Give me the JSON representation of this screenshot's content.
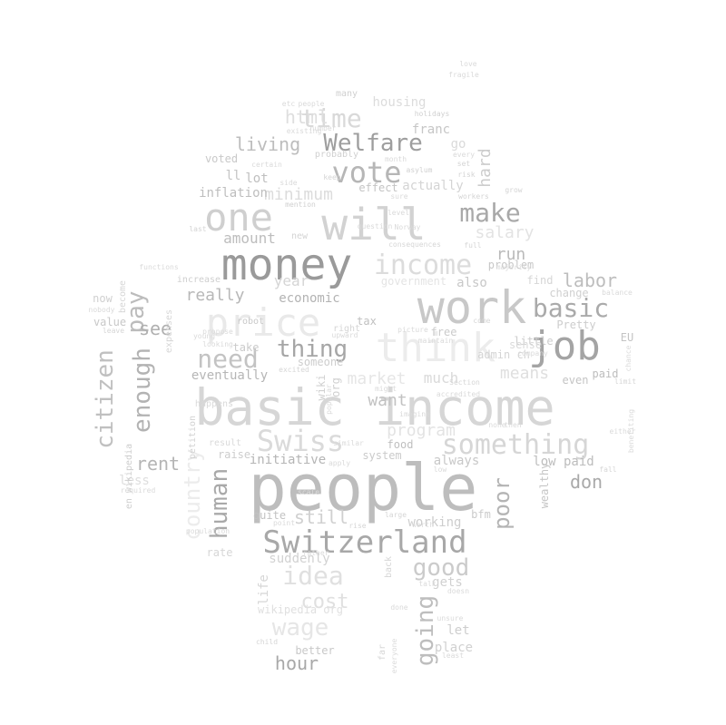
{
  "words": [
    {
      "text": "people",
      "tone": "#bdbdbd"
    },
    {
      "text": "basic income",
      "tone": "#d6d6d6"
    },
    {
      "text": "money",
      "tone": "#9a9a9a"
    },
    {
      "text": "will",
      "tone": "#d2d2d2"
    },
    {
      "text": "work",
      "tone": "#c8c8c8"
    },
    {
      "text": "think",
      "tone": "#ececec"
    },
    {
      "text": "price",
      "tone": "#e9e9e9"
    },
    {
      "text": "job",
      "tone": "#a4a4a4"
    },
    {
      "text": "one",
      "tone": "#cfcfcf"
    },
    {
      "text": "Switzerland",
      "tone": "#a8a8a8"
    },
    {
      "text": "Swiss",
      "tone": "#dadada"
    },
    {
      "text": "something",
      "tone": "#d6d6d6"
    },
    {
      "text": "income",
      "tone": "#dcdcdc"
    },
    {
      "text": "vote",
      "tone": "#b6b6b6"
    },
    {
      "text": "Welfare",
      "tone": "#9e9e9e"
    },
    {
      "text": "time",
      "tone": "#d9d9d9"
    },
    {
      "text": "html",
      "tone": "#dedede"
    },
    {
      "text": "make",
      "tone": "#a9a9a9"
    },
    {
      "text": "basic",
      "tone": "#aaaaaa"
    },
    {
      "text": "need",
      "tone": "#c3c3c3"
    },
    {
      "text": "thing",
      "tone": "#a6a6a6"
    },
    {
      "text": "good",
      "tone": "#cbcbcb"
    },
    {
      "text": "citizen",
      "tone": "#c0c0c0"
    },
    {
      "text": "enough",
      "tone": "#b3b3b3"
    },
    {
      "text": "pay",
      "tone": "#bcbcbc"
    },
    {
      "text": "human",
      "tone": "#a9a9a9"
    },
    {
      "text": "going",
      "tone": "#bebebe"
    },
    {
      "text": "poor",
      "tone": "#b4b4b4"
    },
    {
      "text": "idea",
      "tone": "#e0e0e0"
    },
    {
      "text": "wage",
      "tone": "#e6e6e6"
    },
    {
      "text": "country",
      "tone": "#ececec"
    },
    {
      "text": "labor",
      "tone": "#bdbdbd"
    },
    {
      "text": "living",
      "tone": "#bdbdbd"
    },
    {
      "text": "minimum",
      "tone": "#dcdcdc"
    },
    {
      "text": "market",
      "tone": "#e6e6e6"
    },
    {
      "text": "program",
      "tone": "#e3e3e3"
    },
    {
      "text": "hour",
      "tone": "#a8a8a8"
    },
    {
      "text": "cost",
      "tone": "#e0e0e0"
    },
    {
      "text": "rent",
      "tone": "#b5b5b5"
    },
    {
      "text": "still",
      "tone": "#d0d0d0"
    },
    {
      "text": "see",
      "tone": "#b0b0b0"
    },
    {
      "text": "really",
      "tone": "#b8b8b8"
    },
    {
      "text": "don",
      "tone": "#a9a9a9"
    },
    {
      "text": "run",
      "tone": "#bababa"
    },
    {
      "text": "salary",
      "tone": "#e3e3e3"
    },
    {
      "text": "hard",
      "tone": "#cdcdcd"
    },
    {
      "text": "amount",
      "tone": "#bdbdbd"
    },
    {
      "text": "year",
      "tone": "#d5d5d5"
    },
    {
      "text": "means",
      "tone": "#dfdfdf"
    },
    {
      "text": "want",
      "tone": "#c2c2c2"
    },
    {
      "text": "economic",
      "tone": "#b3b3b3"
    },
    {
      "text": "initiative",
      "tone": "#b5b5b5"
    },
    {
      "text": "inflation",
      "tone": "#bebebe"
    },
    {
      "text": "eventually",
      "tone": "#b6b6b6"
    },
    {
      "text": "low paid",
      "tone": "#bdbdbd"
    },
    {
      "text": "franc",
      "tone": "#c6c6c6"
    },
    {
      "text": "lot",
      "tone": "#bfbfbf"
    },
    {
      "text": "ll",
      "tone": "#c5c5c5"
    },
    {
      "text": "voted",
      "tone": "#c9c9c9"
    },
    {
      "text": "wealthy",
      "tone": "#c6c6c6"
    },
    {
      "text": "paid",
      "tone": "#bdbdbd"
    },
    {
      "text": "even",
      "tone": "#c4c4c4"
    },
    {
      "text": "also",
      "tone": "#c8c8c8"
    },
    {
      "text": "problem",
      "tone": "#c8c8c8"
    },
    {
      "text": "change",
      "tone": "#d0d0d0"
    },
    {
      "text": "little",
      "tone": "#cdcdcd"
    },
    {
      "text": "much",
      "tone": "#dadada"
    },
    {
      "text": "tax",
      "tone": "#c0c0c0"
    },
    {
      "text": "free",
      "tone": "#cbcbcb"
    },
    {
      "text": "food",
      "tone": "#bfbfbf"
    },
    {
      "text": "system",
      "tone": "#cbcbcb"
    },
    {
      "text": "always",
      "tone": "#c8c8c8"
    },
    {
      "text": "working",
      "tone": "#cdcdcd"
    },
    {
      "text": "better",
      "tone": "#c8c8c8"
    },
    {
      "text": "let",
      "tone": "#cecece"
    },
    {
      "text": "place",
      "tone": "#d1d1d1"
    },
    {
      "text": "gets",
      "tone": "#d1d1d1"
    },
    {
      "text": "quite",
      "tone": "#c3c3c3"
    },
    {
      "text": "suddenly",
      "tone": "#d2d2d2"
    },
    {
      "text": "rate",
      "tone": "#d6d6d6"
    },
    {
      "text": "less",
      "tone": "#dedede"
    },
    {
      "text": "raise",
      "tone": "#cdcdcd"
    },
    {
      "text": "value",
      "tone": "#c8c8c8"
    },
    {
      "text": "now",
      "tone": "#d0d0d0"
    },
    {
      "text": "take",
      "tone": "#cbcbcb"
    },
    {
      "text": "robot",
      "tone": "#c9c9c9"
    },
    {
      "text": "someone",
      "tone": "#cdcdcd"
    },
    {
      "text": "life",
      "tone": "#d6d6d6"
    },
    {
      "text": "wikipedia org",
      "tone": "#e0e0e0"
    },
    {
      "text": "en wikipedia",
      "tone": "#cdcdcd"
    },
    {
      "text": "become",
      "tone": "#d6d6d6"
    },
    {
      "text": "petition",
      "tone": "#d2d2d2"
    },
    {
      "text": "expenses",
      "tone": "#d6d6d6"
    },
    {
      "text": "increase",
      "tone": "#cfcfcf"
    },
    {
      "text": "effect",
      "tone": "#c4c4c4"
    },
    {
      "text": "actually",
      "tone": "#d4d4d4"
    },
    {
      "text": "housing",
      "tone": "#dcdcdc"
    },
    {
      "text": "many",
      "tone": "#d0d0d0"
    },
    {
      "text": "EU",
      "tone": "#c4c4c4"
    },
    {
      "text": "bfm",
      "tone": "#cbcbcb"
    },
    {
      "text": "admin ch",
      "tone": "#d4d4d4"
    },
    {
      "text": "Pretty",
      "tone": "#cdcdcd"
    },
    {
      "text": "find",
      "tone": "#d6d6d6"
    },
    {
      "text": "sense",
      "tone": "#dadada"
    },
    {
      "text": "wiki",
      "tone": "#d0d0d0"
    },
    {
      "text": "org",
      "tone": "#d0d0d0"
    },
    {
      "text": "government",
      "tone": "#e4e4e4"
    },
    {
      "text": "probably",
      "tone": "#d0d0d0"
    },
    {
      "text": "holidays",
      "tone": "#d0d0d0"
    },
    {
      "text": "existing",
      "tone": "#dadada"
    },
    {
      "text": "asylum",
      "tone": "#d0d0d0"
    },
    {
      "text": "workers",
      "tone": "#d4d4d4"
    },
    {
      "text": "grow",
      "tone": "#d4d4d4"
    },
    {
      "text": "keep",
      "tone": "#d4d4d4"
    },
    {
      "text": "mention",
      "tone": "#d0d0d0"
    },
    {
      "text": "risk",
      "tone": "#d4d4d4"
    },
    {
      "text": "set",
      "tone": "#d4d4d4"
    },
    {
      "text": "last",
      "tone": "#d4d4d4"
    },
    {
      "text": "new",
      "tone": "#d4d4d4"
    },
    {
      "text": "consequences",
      "tone": "#d6d6d6"
    },
    {
      "text": "full",
      "tone": "#d6d6d6"
    },
    {
      "text": "leave",
      "tone": "#d6d6d6"
    },
    {
      "text": "limit",
      "tone": "#d6d6d6"
    },
    {
      "text": "Section",
      "tone": "#d6d6d6"
    },
    {
      "text": "excited",
      "tone": "#d6d6d6"
    },
    {
      "text": "right",
      "tone": "#d6d6d6"
    },
    {
      "text": "come",
      "tone": "#d6d6d6"
    },
    {
      "text": "fall",
      "tone": "#d6d6d6"
    },
    {
      "text": "far",
      "tone": "#d6d6d6"
    },
    {
      "text": "back",
      "tone": "#d6d6d6"
    },
    {
      "text": "large",
      "tone": "#d6d6d6"
    },
    {
      "text": "rise",
      "tone": "#d6d6d6"
    },
    {
      "text": "child",
      "tone": "#d6d6d6"
    },
    {
      "text": "happens",
      "tone": "#dadada"
    },
    {
      "text": "result",
      "tone": "#dadada"
    },
    {
      "text": "required",
      "tone": "#dadada"
    },
    {
      "text": "go",
      "tone": "#dadada"
    },
    {
      "text": "every",
      "tone": "#dadada"
    },
    {
      "text": "doesn",
      "tone": "#dadada"
    },
    {
      "text": "point",
      "tone": "#dadada"
    },
    {
      "text": "imagine",
      "tone": "#dadada"
    },
    {
      "text": "maintain",
      "tone": "#dadada"
    },
    {
      "text": "etc",
      "tone": "#dadada"
    },
    {
      "text": "either",
      "tone": "#dadada"
    },
    {
      "text": "balance",
      "tone": "#dadada"
    },
    {
      "text": "chance",
      "tone": "#dadada"
    },
    {
      "text": "benefiting",
      "tone": "#dadada"
    },
    {
      "text": "accredited",
      "tone": "#dadada"
    },
    {
      "text": "upward",
      "tone": "#dadada"
    },
    {
      "text": "similar",
      "tone": "#dadada"
    },
    {
      "text": "everyone",
      "tone": "#dadada"
    },
    {
      "text": "worth",
      "tone": "#dadada"
    },
    {
      "text": "talk",
      "tone": "#dadada"
    },
    {
      "text": "least",
      "tone": "#dadada"
    },
    {
      "text": "question",
      "tone": "#dadada"
    },
    {
      "text": "population",
      "tone": "#dadada"
    },
    {
      "text": "Norway",
      "tone": "#dadada"
    },
    {
      "text": "picture",
      "tone": "#dadada"
    },
    {
      "text": "company",
      "tone": "#dadada"
    },
    {
      "text": "majority",
      "tone": "#dadada"
    },
    {
      "text": "fragile",
      "tone": "#dadada"
    },
    {
      "text": "love",
      "tone": "#dadada"
    },
    {
      "text": "month",
      "tone": "#dadada"
    },
    {
      "text": "certain",
      "tone": "#dadada"
    },
    {
      "text": "functions",
      "tone": "#dadada"
    },
    {
      "text": "nobody",
      "tone": "#dadada"
    },
    {
      "text": "young",
      "tone": "#dadada"
    },
    {
      "text": "looking",
      "tone": "#dadada"
    },
    {
      "text": "popular",
      "tone": "#dadada"
    },
    {
      "text": "apply",
      "tone": "#dadada"
    },
    {
      "text": "none",
      "tone": "#dadada"
    },
    {
      "text": "then",
      "tone": "#dadada"
    },
    {
      "text": "unsure",
      "tone": "#dadada"
    },
    {
      "text": "low",
      "tone": "#dadada"
    },
    {
      "text": "side",
      "tone": "#dadada"
    },
    {
      "text": "level",
      "tone": "#dadada"
    },
    {
      "text": "number",
      "tone": "#dadada"
    },
    {
      "text": "sure",
      "tone": "#dadada"
    },
    {
      "text": "propose",
      "tone": "#dadada"
    },
    {
      "text": "rather",
      "tone": "#dadada"
    },
    {
      "text": "done",
      "tone": "#dadada"
    },
    {
      "text": "scale",
      "tone": "#dadada"
    },
    {
      "text": "people",
      "tone": "#dadada"
    },
    {
      "text": "might",
      "tone": "#dadada"
    }
  ]
}
